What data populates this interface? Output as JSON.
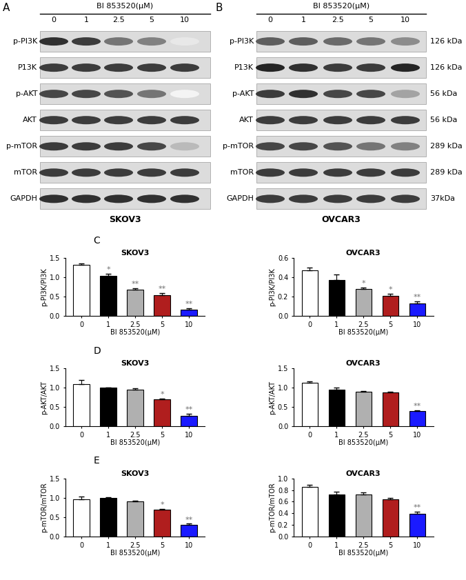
{
  "blots": [
    {
      "panel": "A",
      "treatment": "BI 853520(μM)",
      "concentrations": [
        "0",
        "1",
        "2.5",
        "5",
        "10"
      ],
      "rows": [
        "p-PI3K",
        "P13K",
        "p-AKT",
        "AKT",
        "p-mTOR",
        "mTOR",
        "GAPDH"
      ],
      "cell_line": "SKOV3",
      "band_intensity": [
        [
          0.9,
          0.85,
          0.6,
          0.55,
          0.1
        ],
        [
          0.85,
          0.85,
          0.85,
          0.85,
          0.85
        ],
        [
          0.8,
          0.8,
          0.75,
          0.6,
          0.05
        ],
        [
          0.85,
          0.85,
          0.85,
          0.85,
          0.85
        ],
        [
          0.85,
          0.85,
          0.85,
          0.8,
          0.3
        ],
        [
          0.85,
          0.85,
          0.85,
          0.85,
          0.85
        ],
        [
          0.9,
          0.9,
          0.9,
          0.9,
          0.9
        ]
      ]
    },
    {
      "panel": "B",
      "treatment": "BI 853520(μM)",
      "concentrations": [
        "0",
        "1",
        "2.5",
        "5",
        "10"
      ],
      "rows": [
        "p-PI3K",
        "P13K",
        "p-AKT",
        "AKT",
        "p-mTOR",
        "mTOR",
        "GAPDH"
      ],
      "sizes": [
        "126 kDa",
        "126 kDa",
        "56 kDa",
        "56 kDa",
        "289 kDa",
        "289 kDa",
        "37kDa"
      ],
      "cell_line": "OVCAR3",
      "band_intensity": [
        [
          0.7,
          0.7,
          0.65,
          0.6,
          0.5
        ],
        [
          0.95,
          0.9,
          0.85,
          0.85,
          0.95
        ],
        [
          0.85,
          0.9,
          0.8,
          0.8,
          0.4
        ],
        [
          0.85,
          0.85,
          0.85,
          0.85,
          0.85
        ],
        [
          0.8,
          0.8,
          0.75,
          0.6,
          0.55
        ],
        [
          0.85,
          0.85,
          0.85,
          0.85,
          0.85
        ],
        [
          0.85,
          0.85,
          0.85,
          0.85,
          0.85
        ]
      ]
    }
  ],
  "chart_data": [
    {
      "type": "bar",
      "panel": "C",
      "title": "SKOV3",
      "x_label": "BI 853520(μM)",
      "y_label": "p-PI3K/PI3K",
      "categories": [
        "0",
        "1",
        "2.5",
        "5",
        "10"
      ],
      "values": [
        1.33,
        1.04,
        0.68,
        0.55,
        0.17
      ],
      "errors": [
        0.03,
        0.05,
        0.04,
        0.05,
        0.03
      ],
      "annotations": [
        null,
        "*",
        "**",
        "**",
        "**"
      ],
      "colors": [
        "#ffffff",
        "#000000",
        "#b0b0b0",
        "#b01e1e",
        "#1a1aff"
      ],
      "ylim": [
        0,
        1.5
      ],
      "yticks": [
        {
          "value": 0,
          "label": "0.0"
        },
        {
          "value": 0.5,
          "label": "0.5"
        },
        {
          "value": 1.0,
          "label": "1.0"
        },
        {
          "value": 1.5,
          "label": "1.5"
        }
      ]
    },
    {
      "type": "bar",
      "title": "OVCAR3",
      "x_label": "BI 853520(μM)",
      "y_label": "p-PI3K/PI3K",
      "categories": [
        "0",
        "1",
        "2.5",
        "5",
        "10"
      ],
      "values": [
        0.47,
        0.37,
        0.28,
        0.21,
        0.13
      ],
      "errors": [
        0.03,
        0.06,
        0.015,
        0.02,
        0.02
      ],
      "annotations": [
        null,
        null,
        "*",
        "*",
        "**"
      ],
      "colors": [
        "#ffffff",
        "#000000",
        "#b0b0b0",
        "#b01e1e",
        "#1a1aff"
      ],
      "ylim": [
        0,
        0.6
      ],
      "yticks": [
        {
          "value": 0,
          "label": "0.0"
        },
        {
          "value": 0.2,
          "label": "0.2"
        },
        {
          "value": 0.4,
          "label": "0.4"
        },
        {
          "value": 0.6,
          "label": "0.6"
        }
      ]
    },
    {
      "type": "bar",
      "panel": "D",
      "title": "SKOV3",
      "x_label": "BI 853520(μM)",
      "y_label": "p-AKT/AKT",
      "categories": [
        "0",
        "1",
        "2.5",
        "5",
        "10"
      ],
      "values": [
        1.09,
        1.0,
        0.94,
        0.69,
        0.27
      ],
      "errors": [
        0.1,
        0.01,
        0.04,
        0.02,
        0.05
      ],
      "annotations": [
        null,
        null,
        null,
        "*",
        "**"
      ],
      "colors": [
        "#ffffff",
        "#000000",
        "#b0b0b0",
        "#b01e1e",
        "#1a1aff"
      ],
      "ylim": [
        0,
        1.5
      ],
      "yticks": [
        {
          "value": 0,
          "label": "0.0"
        },
        {
          "value": 0.5,
          "label": "0.5"
        },
        {
          "value": 1.0,
          "label": "1.0"
        },
        {
          "value": 1.5,
          "label": "1.5"
        }
      ]
    },
    {
      "type": "bar",
      "title": "OVCAR3",
      "x_label": "BI 853520(μM)",
      "y_label": "p-AKT/AKT",
      "categories": [
        "0",
        "1",
        "2.5",
        "5",
        "10"
      ],
      "values": [
        1.13,
        0.95,
        0.89,
        0.88,
        0.39
      ],
      "errors": [
        0.04,
        0.06,
        0.03,
        0.01,
        0.03
      ],
      "annotations": [
        null,
        null,
        null,
        null,
        "**"
      ],
      "colors": [
        "#ffffff",
        "#000000",
        "#b0b0b0",
        "#b01e1e",
        "#1a1aff"
      ],
      "ylim": [
        0,
        1.5
      ],
      "yticks": [
        {
          "value": 0,
          "label": "0.0"
        },
        {
          "value": 0.5,
          "label": "0.5"
        },
        {
          "value": 1.0,
          "label": "1.0"
        },
        {
          "value": 1.5,
          "label": "1.5"
        }
      ]
    },
    {
      "type": "bar",
      "panel": "E",
      "title": "SKOV3",
      "x_label": "BI 853520(μM)",
      "y_label": "p-mTOR/mTOR",
      "categories": [
        "0",
        "1",
        "2.5",
        "5",
        "10"
      ],
      "values": [
        0.97,
        0.99,
        0.9,
        0.7,
        0.31
      ],
      "errors": [
        0.06,
        0.02,
        0.03,
        0.02,
        0.02
      ],
      "annotations": [
        null,
        null,
        null,
        "*",
        "**"
      ],
      "colors": [
        "#ffffff",
        "#000000",
        "#b0b0b0",
        "#b01e1e",
        "#1a1aff"
      ],
      "ylim": [
        0,
        1.5
      ],
      "yticks": [
        {
          "value": 0,
          "label": "0.0"
        },
        {
          "value": 0.5,
          "label": "0.5"
        },
        {
          "value": 1.0,
          "label": "1.0"
        },
        {
          "value": 1.5,
          "label": "1.5"
        }
      ]
    },
    {
      "type": "bar",
      "title": "OVCAR3",
      "x_label": "BI 853520(μM)",
      "y_label": "p-mTOR/mTOR",
      "categories": [
        "0",
        "1",
        "2.5",
        "5",
        "10"
      ],
      "values": [
        0.85,
        0.73,
        0.72,
        0.64,
        0.39
      ],
      "errors": [
        0.04,
        0.04,
        0.04,
        0.03,
        0.04
      ],
      "annotations": [
        null,
        null,
        null,
        null,
        "**"
      ],
      "colors": [
        "#ffffff",
        "#000000",
        "#b0b0b0",
        "#b01e1e",
        "#1a1aff"
      ],
      "ylim": [
        0,
        1.0
      ],
      "yticks": [
        {
          "value": 0,
          "label": "0.0"
        },
        {
          "value": 0.2,
          "label": "0.2"
        },
        {
          "value": 0.4,
          "label": "0.4"
        },
        {
          "value": 0.6,
          "label": "0.6"
        },
        {
          "value": 0.8,
          "label": "0.8"
        },
        {
          "value": 1.0,
          "label": "1.0"
        }
      ]
    }
  ]
}
